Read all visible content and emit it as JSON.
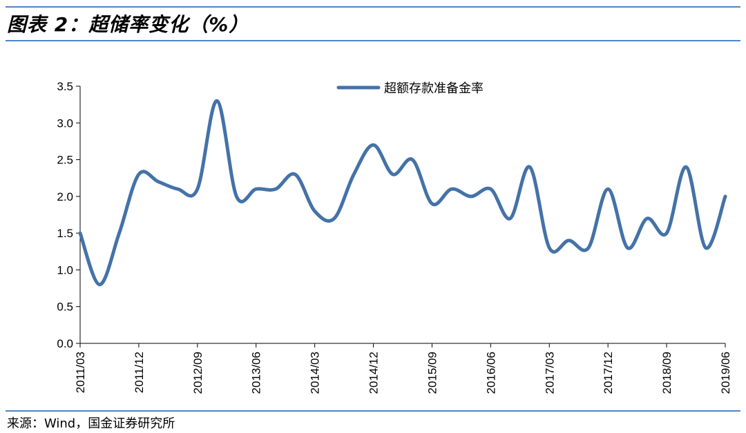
{
  "header": {
    "title": "图表 2：超储率变化（%）"
  },
  "footer": {
    "source": "来源：Wind，国金证券研究所"
  },
  "colors": {
    "rule": "#4a86c6",
    "series": "#4472a8",
    "axis": "#000000"
  },
  "chart_data": {
    "type": "line",
    "title": "",
    "xlabel": "",
    "ylabel": "",
    "ylim": [
      0,
      3.5
    ],
    "yticks": [
      "0.0",
      "0.5",
      "1.0",
      "1.5",
      "2.0",
      "2.5",
      "3.0",
      "3.5"
    ],
    "xticks": [
      "2011/03",
      "2011/12",
      "2012/09",
      "2013/06",
      "2014/03",
      "2014/12",
      "2015/09",
      "2016/06",
      "2017/03",
      "2017/12",
      "2018/09",
      "2019/06"
    ],
    "grid": false,
    "legend_position": "top-center",
    "series": [
      {
        "name": "超额存款准备金率",
        "x": [
          "2011/03",
          "2011/06",
          "2011/09",
          "2011/12",
          "2012/03",
          "2012/06",
          "2012/09",
          "2012/12",
          "2013/03",
          "2013/06",
          "2013/09",
          "2013/12",
          "2014/03",
          "2014/06",
          "2014/09",
          "2014/12",
          "2015/03",
          "2015/06",
          "2015/09",
          "2015/12",
          "2016/03",
          "2016/06",
          "2016/09",
          "2016/12",
          "2017/03",
          "2017/06",
          "2017/09",
          "2017/12",
          "2018/03",
          "2018/06",
          "2018/09",
          "2018/12",
          "2019/03",
          "2019/06"
        ],
        "values": [
          1.5,
          0.8,
          1.5,
          2.3,
          2.2,
          2.1,
          2.1,
          3.3,
          2.0,
          2.1,
          2.1,
          2.3,
          1.8,
          1.7,
          2.3,
          2.7,
          2.3,
          2.5,
          1.9,
          2.1,
          2.0,
          2.1,
          1.7,
          2.4,
          1.3,
          1.4,
          1.3,
          2.1,
          1.3,
          1.7,
          1.5,
          2.4,
          1.3,
          2.0
        ]
      }
    ]
  }
}
